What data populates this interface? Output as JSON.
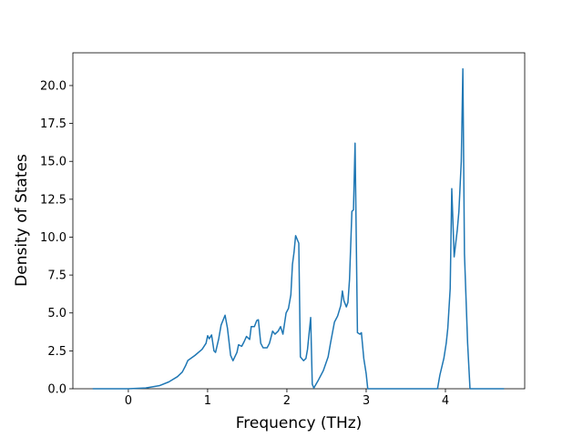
{
  "chart_data": {
    "type": "line",
    "xlabel": "Frequency (THz)",
    "ylabel": "Density of States",
    "x": [
      -0.45,
      0,
      0.22,
      0.39,
      0.51,
      0.62,
      0.68,
      0.72,
      0.75,
      0.84,
      0.93,
      0.98,
      1.0,
      1.02,
      1.05,
      1.08,
      1.1,
      1.14,
      1.17,
      1.22,
      1.25,
      1.29,
      1.32,
      1.37,
      1.39,
      1.43,
      1.46,
      1.49,
      1.53,
      1.55,
      1.59,
      1.62,
      1.64,
      1.67,
      1.7,
      1.75,
      1.78,
      1.82,
      1.85,
      1.89,
      1.92,
      1.95,
      1.99,
      2.02,
      2.05,
      2.07,
      2.09,
      2.11,
      2.15,
      2.17,
      2.21,
      2.24,
      2.26,
      2.3,
      2.32,
      2.34,
      2.39,
      2.46,
      2.52,
      2.55,
      2.6,
      2.64,
      2.68,
      2.7,
      2.72,
      2.75,
      2.77,
      2.79,
      2.82,
      2.84,
      2.86,
      2.89,
      2.92,
      2.94,
      2.97,
      3.0,
      3.02,
      3.9,
      3.93,
      3.98,
      4.01,
      4.03,
      4.06,
      4.08,
      4.11,
      4.15,
      4.17,
      4.2,
      4.22,
      4.24,
      4.28,
      4.31,
      4.74
    ],
    "series": [
      {
        "color": "#1f77b4",
        "values": [
          0,
          0,
          0.05,
          0.2,
          0.45,
          0.8,
          1.1,
          1.5,
          1.86,
          2.2,
          2.6,
          3.0,
          3.5,
          3.3,
          3.55,
          2.5,
          2.4,
          3.3,
          4.2,
          4.85,
          4.0,
          2.2,
          1.85,
          2.4,
          2.9,
          2.8,
          3.1,
          3.45,
          3.25,
          4.1,
          4.1,
          4.5,
          4.55,
          3.0,
          2.7,
          2.7,
          3.0,
          3.8,
          3.6,
          3.8,
          4.1,
          3.6,
          5.0,
          5.3,
          6.2,
          8.2,
          9.0,
          10.1,
          9.6,
          2.1,
          1.85,
          2.0,
          2.6,
          4.7,
          0.3,
          0.05,
          0.5,
          1.2,
          2.1,
          3.0,
          4.4,
          4.8,
          5.5,
          6.45,
          5.8,
          5.4,
          5.7,
          7.2,
          11.7,
          11.8,
          16.2,
          3.7,
          3.6,
          3.7,
          2.0,
          1.0,
          0,
          0,
          0.9,
          2.0,
          3.0,
          4.0,
          6.6,
          13.2,
          8.7,
          10.5,
          11.7,
          15.0,
          21.1,
          8.9,
          3.0,
          0,
          0
        ]
      }
    ],
    "xlim": [
      -0.7,
      5.0
    ],
    "xticks": [
      0,
      1,
      2,
      3,
      4
    ],
    "ylim": [
      0,
      22.16
    ],
    "yticks": [
      {
        "value": 0,
        "label": "0.0"
      },
      {
        "value": 2.5,
        "label": "2.5"
      },
      {
        "value": 5,
        "label": "5.0"
      },
      {
        "value": 7.5,
        "label": "7.5"
      },
      {
        "value": 10,
        "label": "10.0"
      },
      {
        "value": 12.5,
        "label": "12.5"
      },
      {
        "value": 15,
        "label": "15.0"
      },
      {
        "value": 17.5,
        "label": "17.5"
      },
      {
        "value": 20,
        "label": "20.0"
      }
    ]
  }
}
